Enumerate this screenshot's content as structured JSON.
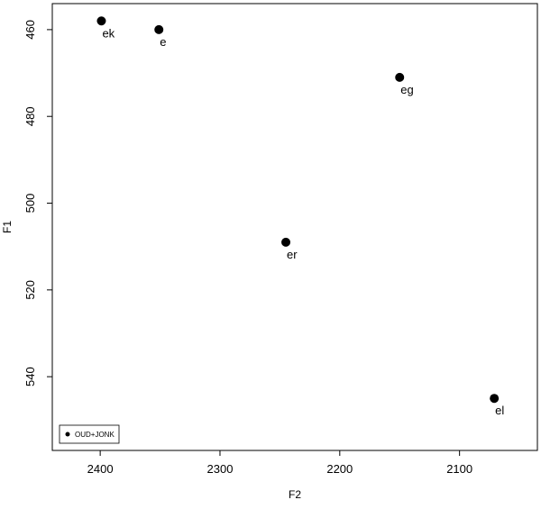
{
  "chart_data": {
    "type": "scatter",
    "title": "",
    "xlabel": "F2",
    "ylabel": "F1",
    "x_reversed": true,
    "y_reversed": true,
    "xlim": [
      2440,
      2035
    ],
    "ylim": [
      454,
      557
    ],
    "x_ticks": [
      2400,
      2300,
      2200,
      2100
    ],
    "y_ticks": [
      460,
      480,
      500,
      520,
      540
    ],
    "grid": false,
    "legend_position": "bottom-left",
    "series": [
      {
        "name": "OUD+JONK",
        "color": "#000000",
        "points": [
          {
            "label": "ek",
            "x": 2399,
            "y": 458
          },
          {
            "label": "e",
            "x": 2351,
            "y": 460
          },
          {
            "label": "eg",
            "x": 2150,
            "y": 471
          },
          {
            "label": "er",
            "x": 2245,
            "y": 509
          },
          {
            "label": "el",
            "x": 2071,
            "y": 545
          }
        ]
      }
    ]
  }
}
